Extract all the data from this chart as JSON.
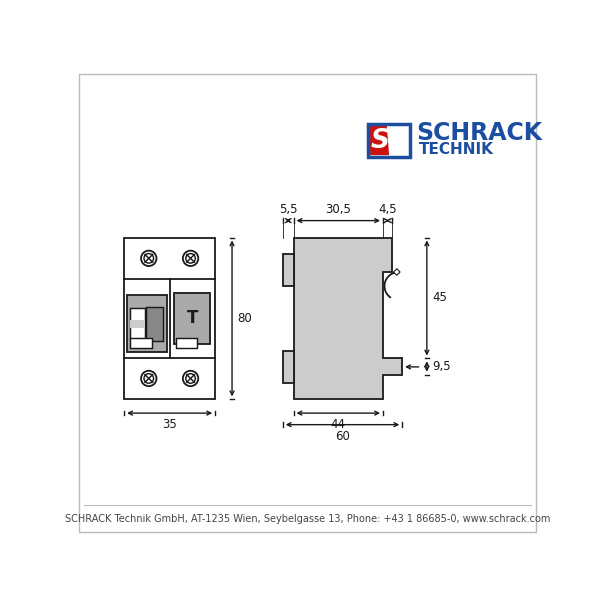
{
  "bg_color": "#ffffff",
  "border_color": "#bbbbbb",
  "line_color": "#1a1a1a",
  "gray_dark": "#888888",
  "gray_mid": "#aaaaaa",
  "gray_light": "#cccccc",
  "schrack_blue": "#1b4da0",
  "schrack_red": "#cc1111",
  "footer_text": "SCHRACK Technik GmbH, AT-1235 Wien, Seybelgasse 13, Phone: +43 1 86685-0, www.schrack.com",
  "dim_55": "5,5",
  "dim_305": "30,5",
  "dim_45t": "4,5",
  "dim_80": "80",
  "dim_35": "35",
  "dim_44": "44",
  "dim_60": "60",
  "dim_45h": "45",
  "dim_95": "9,5"
}
